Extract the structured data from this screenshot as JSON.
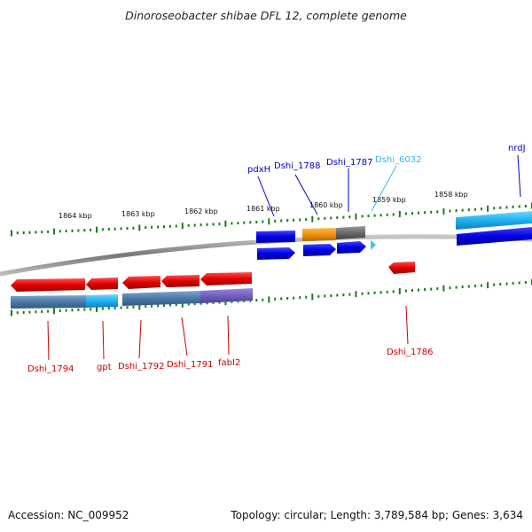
{
  "title": "Dinoroseobacter shibae DFL 12, complete genome",
  "footer": {
    "accession": "Accession: NC_009952",
    "summary": "Topology: circular; Length: 3,789,584 bp; Genes: 3,634"
  },
  "ticks": [
    "1864 kbp",
    "1863 kbp",
    "1862 kbp",
    "1861 kbp",
    "1860 kbp",
    "1859 kbp",
    "1858 kbp"
  ],
  "upper_labels": [
    "pdxH",
    "Dshi_1788",
    "Dshi_1787",
    "Dshi_6032",
    "nrdJ"
  ],
  "lower_labels": [
    "Dshi_1794",
    "gpt",
    "Dshi_1792",
    "Dshi_1791",
    "fabI2",
    "Dshi_1786"
  ],
  "colors": {
    "forward_gene": "#0000e0",
    "reverse_gene": "#e00000",
    "upper_label": "#0000cc",
    "lower_label": "#cc0000",
    "highlight_label": "#33bbee",
    "tick": "#1a7a1a",
    "backbone": "#888888"
  }
}
